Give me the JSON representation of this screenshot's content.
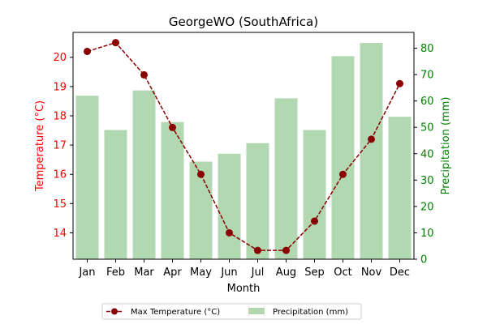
{
  "chart_data": {
    "type": "bar+line",
    "title": "GeorgeWO (SouthAfrica)",
    "xlabel": "Month",
    "categories": [
      "Jan",
      "Feb",
      "Mar",
      "Apr",
      "May",
      "Jun",
      "Jul",
      "Aug",
      "Sep",
      "Oct",
      "Nov",
      "Dec"
    ],
    "temperature": {
      "name": "Max Temperature (°C)",
      "axis_label": "Temperature (°C)",
      "color": "#8b0000",
      "axis_color": "#ff0000",
      "values": [
        20.2,
        20.5,
        19.4,
        17.6,
        16.0,
        14.0,
        13.4,
        13.4,
        14.4,
        16.0,
        17.2,
        19.1
      ],
      "ylim": [
        13.1,
        20.85
      ],
      "ticks": [
        14,
        15,
        16,
        17,
        18,
        19,
        20
      ]
    },
    "precipitation": {
      "name": "Precipitation (mm)",
      "axis_label": "Precipitation (mm)",
      "color": "#b2d8b2",
      "axis_color": "#008000",
      "values": [
        62,
        49,
        64,
        52,
        37,
        40,
        44,
        61,
        49,
        77,
        82,
        54
      ],
      "ylim": [
        0,
        86
      ],
      "ticks": [
        0,
        10,
        20,
        30,
        40,
        50,
        60,
        70,
        80
      ]
    },
    "legend_position": "bottom-center"
  }
}
